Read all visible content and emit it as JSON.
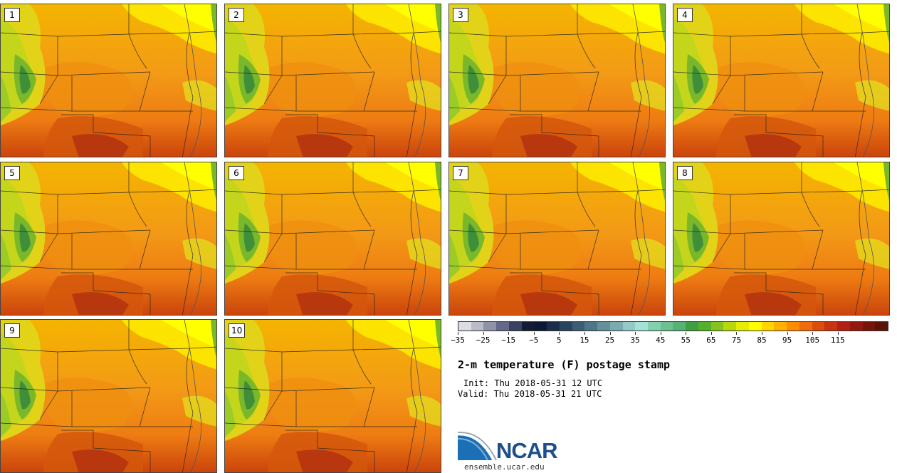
{
  "panels": [
    {
      "label": "1"
    },
    {
      "label": "2"
    },
    {
      "label": "3"
    },
    {
      "label": "4"
    },
    {
      "label": "5"
    },
    {
      "label": "6"
    },
    {
      "label": "7"
    },
    {
      "label": "8"
    },
    {
      "label": "9"
    },
    {
      "label": "10"
    }
  ],
  "colorbar": {
    "colors": [
      "#dcdde3",
      "#b9bcc8",
      "#8e93a8",
      "#62698a",
      "#3a4262",
      "#141c33",
      "#0d1a36",
      "#1a2e4a",
      "#2a4460",
      "#3d5d74",
      "#4e7688",
      "#64909c",
      "#7aabb0",
      "#94c9c5",
      "#a3e3d6",
      "#82d0ad",
      "#6cc08f",
      "#56b177",
      "#3f9e44",
      "#55b02b",
      "#86c31c",
      "#b8d80e",
      "#e5ed07",
      "#ffff00",
      "#ffd600",
      "#ffb000",
      "#ff8c00",
      "#f06a0e",
      "#dd4d0a",
      "#c83410",
      "#b12012",
      "#93180f",
      "#761508",
      "#5c1406"
    ],
    "tick_labels": [
      "−35",
      "−25",
      "−15",
      "−5",
      "5",
      "15",
      "25",
      "35",
      "45",
      "55",
      "65",
      "75",
      "85",
      "95",
      "105",
      "115"
    ]
  },
  "title": "2-m temperature (F) postage stamp",
  "init": "Init: Thu 2018-05-31 12 UTC",
  "valid": "Valid: Thu 2018-05-31 21 UTC",
  "logo_text": "NCAR",
  "url": "ensemble.ucar.edu"
}
